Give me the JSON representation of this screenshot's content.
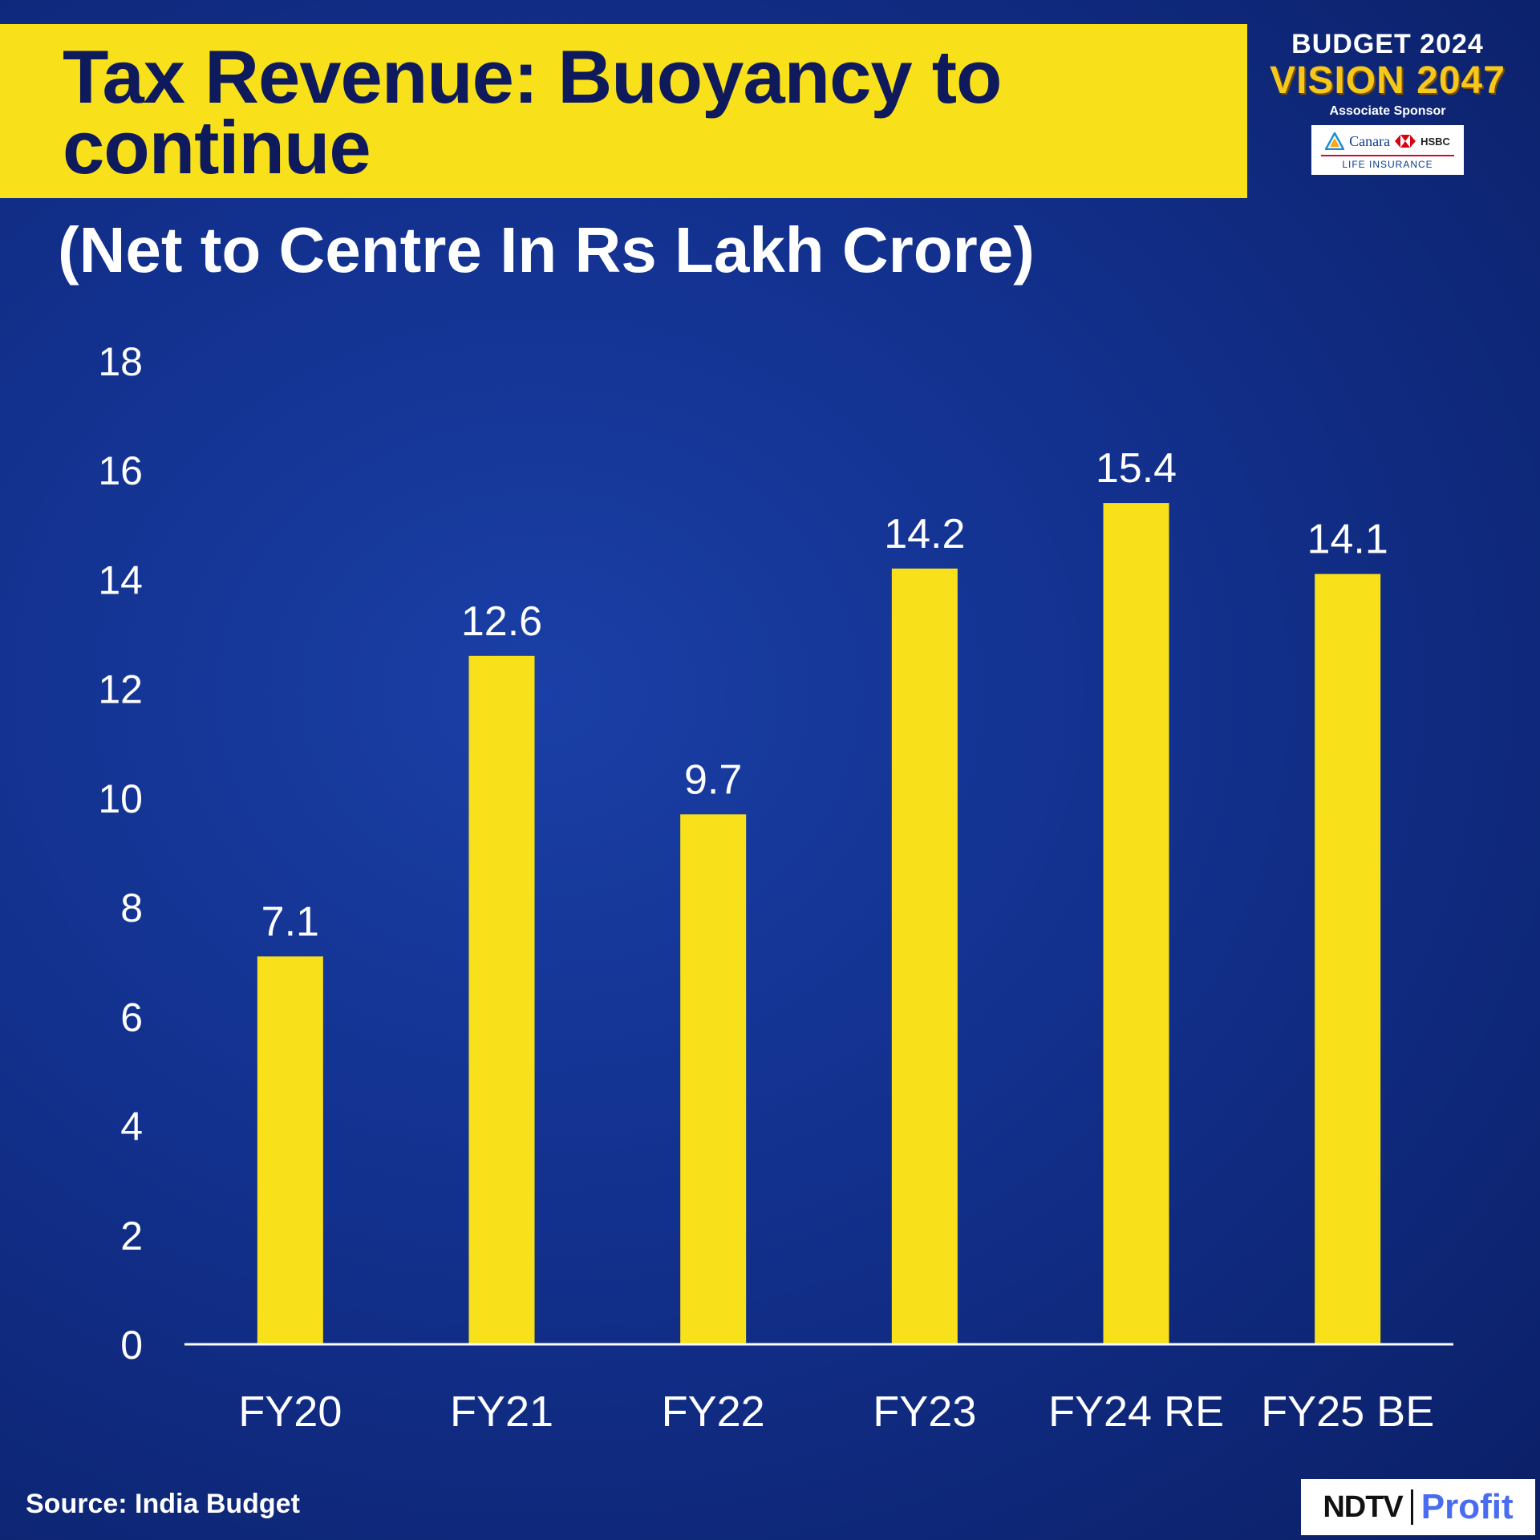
{
  "title": "Tax Revenue: Buoyancy to continue",
  "subtitle": "(Net to Centre In Rs Lakh Crore)",
  "brand": {
    "line1": "BUDGET 2024",
    "line2": "VISION 2047",
    "line3": "Associate Sponsor",
    "sponsor_name": "Canara",
    "sponsor_partner": "HSBC",
    "sponsor_sub": "LIFE INSURANCE"
  },
  "source": "Source: India Budget",
  "logo": {
    "left": "NDTV",
    "right": "Profit"
  },
  "colors": {
    "bar": "#f8e11a",
    "background": "#12308d",
    "title_band": "#f8e11a",
    "title_text": "#0e1a5c"
  },
  "chart_data": {
    "type": "bar",
    "categories": [
      "FY20",
      "FY21",
      "FY22",
      "FY23",
      "FY24 RE",
      "FY25 BE"
    ],
    "values": [
      7.1,
      12.6,
      9.7,
      14.2,
      15.4,
      14.1
    ],
    "value_labels": [
      "7.1",
      "12.6",
      "9.7",
      "14.2",
      "15.4",
      "14.1"
    ],
    "yticks": [
      "0",
      "2",
      "4",
      "6",
      "8",
      "10",
      "12",
      "14",
      "16",
      "18"
    ],
    "ylim": [
      0,
      18
    ],
    "grid": false,
    "legend": "none"
  }
}
